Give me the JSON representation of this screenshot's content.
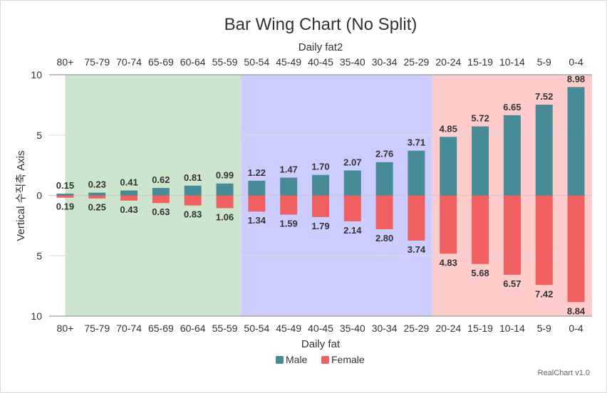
{
  "chart_data": {
    "type": "bar",
    "title": "Bar Wing Chart (No Split)",
    "x_top_title": "Daily fat2",
    "x_bottom_title": "Daily fat",
    "y_title": "Vertical 수직축 Axis",
    "y_ticks": [
      "10",
      "5",
      "0",
      "5",
      "10"
    ],
    "ylim": [
      -10,
      10
    ],
    "categories": [
      "80+",
      "75-79",
      "70-74",
      "65-69",
      "60-64",
      "55-59",
      "50-54",
      "45-49",
      "40-45",
      "35-40",
      "30-34",
      "25-29",
      "20-24",
      "15-19",
      "10-14",
      "5-9",
      "0-4"
    ],
    "series": [
      {
        "name": "Male",
        "color": "#468b96",
        "values": [
          0.15,
          0.23,
          0.41,
          0.62,
          0.81,
          0.99,
          1.22,
          1.47,
          1.7,
          2.07,
          2.76,
          3.71,
          4.85,
          5.72,
          6.65,
          7.52,
          8.98
        ]
      },
      {
        "name": "Female",
        "color": "#f06060",
        "values": [
          0.19,
          0.25,
          0.43,
          0.63,
          0.83,
          1.06,
          1.34,
          1.59,
          1.79,
          2.14,
          2.8,
          3.74,
          4.83,
          5.68,
          6.57,
          7.42,
          8.84
        ]
      }
    ],
    "bands": [
      {
        "from": "80+",
        "to": "55-59",
        "color": "#cce5cc"
      },
      {
        "from": "50-54",
        "to": "25-29",
        "color": "#ccccff"
      },
      {
        "from": "20-24",
        "to": "0-4",
        "color": "#ffcccc"
      }
    ],
    "grid": true,
    "legend_position": "bottom-center",
    "credit": "RealChart v1.0"
  }
}
